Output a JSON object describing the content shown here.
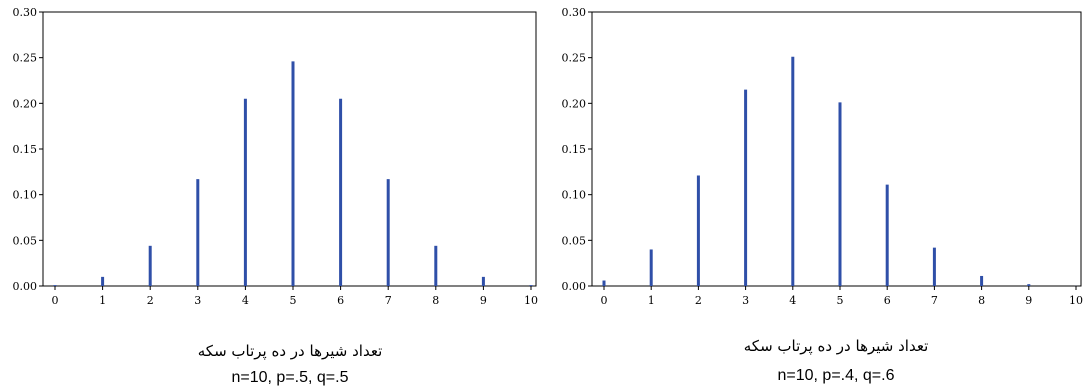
{
  "chart_data": [
    {
      "type": "bar",
      "xlabel": "تعداد شیرها در ده پرتاب سکه",
      "caption": "n=10, p=.5, q=.5",
      "x": [
        0,
        1,
        2,
        3,
        4,
        5,
        6,
        7,
        8,
        9,
        10
      ],
      "values": [
        0.001,
        0.01,
        0.044,
        0.117,
        0.205,
        0.246,
        0.205,
        0.117,
        0.044,
        0.01,
        0.001
      ],
      "ylim": [
        0,
        0.3
      ],
      "yticks": [
        "0.00",
        "0.05",
        "0.10",
        "0.15",
        "0.20",
        "0.25",
        "0.30"
      ],
      "xticks": [
        "0",
        "1",
        "2",
        "3",
        "4",
        "5",
        "6",
        "7",
        "8",
        "9",
        "10"
      ],
      "bar_color": "#2f4fa8",
      "grid": false
    },
    {
      "type": "bar",
      "xlabel": "تعداد شیرها در ده پرتاب سکه",
      "caption": "n=10, p=.4, q=.6",
      "x": [
        0,
        1,
        2,
        3,
        4,
        5,
        6,
        7,
        8,
        9,
        10
      ],
      "values": [
        0.006,
        0.04,
        0.121,
        0.215,
        0.251,
        0.201,
        0.111,
        0.042,
        0.011,
        0.002,
        0.0001
      ],
      "ylim": [
        0,
        0.3
      ],
      "yticks": [
        "0.00",
        "0.05",
        "0.10",
        "0.15",
        "0.20",
        "0.25",
        "0.30"
      ],
      "xticks": [
        "0",
        "1",
        "2",
        "3",
        "4",
        "5",
        "6",
        "7",
        "8",
        "9",
        "10"
      ],
      "bar_color": "#2f4fa8",
      "grid": false
    }
  ]
}
